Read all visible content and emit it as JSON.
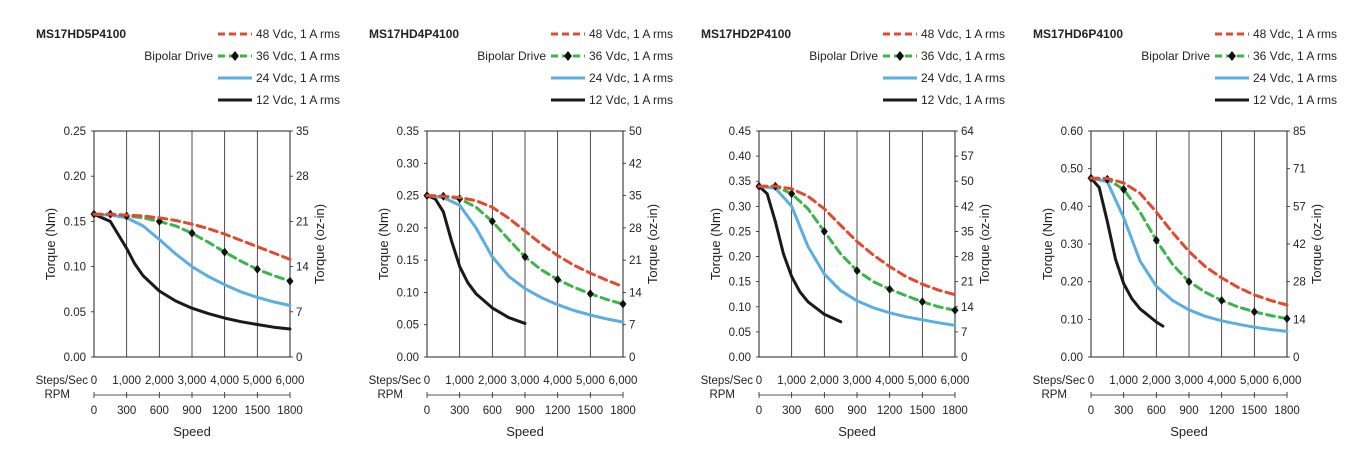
{
  "legend": {
    "drive": "Bipolar Drive",
    "entries": [
      {
        "label": "48 Vdc, 1 A rms",
        "color": "#e04a2f",
        "style": "dashed"
      },
      {
        "label": "36 Vdc, 1 A rms",
        "color": "#3ab54a",
        "style": "dashed-diamond"
      },
      {
        "label": "24 Vdc, 1 A rms",
        "color": "#5aaee0",
        "style": "solid"
      },
      {
        "label": "12 Vdc, 1 A rms",
        "color": "#1a1a1a",
        "style": "solid"
      }
    ]
  },
  "axes": {
    "y_left_label": "Torque (Nm)",
    "y_right_label": "Torque (oz-in)",
    "x_label": "Speed",
    "x_row1_label": "Steps/Sec",
    "x_row2_label": "RPM",
    "x_row1_ticks": [
      "0",
      "1,000",
      "2,000",
      "3,000",
      "4,000",
      "5,000",
      "6,000"
    ],
    "x_row2_ticks": [
      "0",
      "300",
      "600",
      "900",
      "1200",
      "1500",
      "1800"
    ]
  },
  "chart_data": [
    {
      "type": "line",
      "title": "MS17HD5P4100",
      "xlabel": "Speed",
      "ylabel": "Torque (Nm)",
      "xlim": [
        0,
        6000
      ],
      "ylim": [
        0,
        0.25
      ],
      "y_ticks": [
        "0.00",
        "0.05",
        "0.10",
        "0.15",
        "0.20",
        "0.25"
      ],
      "y2_ticks": [
        "0",
        "7",
        "14",
        "21",
        "28",
        "35"
      ],
      "grid": "vertical",
      "series": [
        {
          "name": "48 Vdc, 1 A rms",
          "x": [
            0,
            500,
            1000,
            1500,
            2000,
            2500,
            3000,
            3500,
            4000,
            4500,
            5000,
            5500,
            6000
          ],
          "y": [
            0.158,
            0.158,
            0.157,
            0.156,
            0.154,
            0.151,
            0.147,
            0.142,
            0.136,
            0.129,
            0.122,
            0.115,
            0.108
          ]
        },
        {
          "name": "36 Vdc, 1 A rms",
          "x": [
            0,
            500,
            1000,
            1500,
            2000,
            2500,
            3000,
            3500,
            4000,
            4500,
            5000,
            5500,
            6000
          ],
          "y": [
            0.158,
            0.158,
            0.156,
            0.154,
            0.15,
            0.145,
            0.137,
            0.127,
            0.116,
            0.106,
            0.097,
            0.09,
            0.084
          ]
        },
        {
          "name": "24 Vdc, 1 A rms",
          "x": [
            0,
            500,
            1000,
            1500,
            2000,
            2500,
            3000,
            3500,
            4000,
            4500,
            5000,
            5500,
            6000
          ],
          "y": [
            0.158,
            0.157,
            0.154,
            0.145,
            0.13,
            0.114,
            0.1,
            0.089,
            0.08,
            0.072,
            0.066,
            0.061,
            0.057
          ]
        },
        {
          "name": "12 Vdc, 1 A rms",
          "x": [
            0,
            500,
            1000,
            1250,
            1500,
            2000,
            2500,
            3000,
            3500,
            4000,
            4500,
            5000,
            5500,
            6000
          ],
          "y": [
            0.158,
            0.15,
            0.12,
            0.103,
            0.09,
            0.073,
            0.062,
            0.054,
            0.048,
            0.043,
            0.039,
            0.036,
            0.033,
            0.031
          ]
        }
      ]
    },
    {
      "type": "line",
      "title": "MS17HD4P4100",
      "xlabel": "Speed",
      "ylabel": "Torque (Nm)",
      "xlim": [
        0,
        6000
      ],
      "ylim": [
        0,
        0.35
      ],
      "y_ticks": [
        "0.00",
        "0.05",
        "0.10",
        "0.15",
        "0.20",
        "0.25",
        "0.30",
        "0.35"
      ],
      "y2_ticks": [
        "0",
        "7",
        "14",
        "21",
        "28",
        "35",
        "42",
        "50"
      ],
      "grid": "vertical",
      "series": [
        {
          "name": "48 Vdc, 1 A rms",
          "x": [
            0,
            500,
            1000,
            1500,
            2000,
            2500,
            3000,
            3500,
            4000,
            4500,
            5000,
            5500,
            6000
          ],
          "y": [
            0.25,
            0.249,
            0.247,
            0.242,
            0.232,
            0.215,
            0.195,
            0.175,
            0.157,
            0.142,
            0.13,
            0.119,
            0.109
          ]
        },
        {
          "name": "36 Vdc, 1 A rms",
          "x": [
            0,
            500,
            1000,
            1500,
            2000,
            2500,
            3000,
            3500,
            4000,
            4500,
            5000,
            5500,
            6000
          ],
          "y": [
            0.25,
            0.249,
            0.245,
            0.232,
            0.21,
            0.182,
            0.155,
            0.135,
            0.12,
            0.108,
            0.098,
            0.089,
            0.082
          ]
        },
        {
          "name": "24 Vdc, 1 A rms",
          "x": [
            0,
            500,
            1000,
            1500,
            2000,
            2500,
            3000,
            3500,
            4000,
            4500,
            5000,
            5500,
            6000
          ],
          "y": [
            0.25,
            0.247,
            0.235,
            0.2,
            0.155,
            0.125,
            0.106,
            0.092,
            0.081,
            0.072,
            0.065,
            0.059,
            0.054
          ]
        },
        {
          "name": "12 Vdc, 1 A rms",
          "x": [
            0,
            250,
            500,
            750,
            1000,
            1250,
            1500,
            2000,
            2500,
            3000
          ],
          "y": [
            0.25,
            0.245,
            0.225,
            0.18,
            0.14,
            0.115,
            0.098,
            0.076,
            0.061,
            0.052
          ]
        }
      ]
    },
    {
      "type": "line",
      "title": "MS17HD2P4100",
      "xlabel": "Speed",
      "ylabel": "Torque (Nm)",
      "xlim": [
        0,
        6000
      ],
      "ylim": [
        0,
        0.45
      ],
      "y_ticks": [
        "0.00",
        "0.05",
        "0.10",
        "0.15",
        "0.20",
        "0.25",
        "0.30",
        "0.35",
        "0.40",
        "0.45"
      ],
      "y2_ticks": [
        "0",
        "7",
        "14",
        "21",
        "28",
        "35",
        "42",
        "50",
        "57",
        "64"
      ],
      "grid": "vertical",
      "series": [
        {
          "name": "48 Vdc, 1 A rms",
          "x": [
            0,
            500,
            1000,
            1500,
            2000,
            2500,
            3000,
            3500,
            4000,
            4500,
            5000,
            5500,
            6000
          ],
          "y": [
            0.34,
            0.34,
            0.335,
            0.32,
            0.295,
            0.262,
            0.23,
            0.203,
            0.18,
            0.16,
            0.145,
            0.133,
            0.124
          ]
        },
        {
          "name": "36 Vdc, 1 A rms",
          "x": [
            0,
            500,
            1000,
            1500,
            2000,
            2500,
            3000,
            3500,
            4000,
            4500,
            5000,
            5500,
            6000
          ],
          "y": [
            0.34,
            0.34,
            0.325,
            0.295,
            0.25,
            0.205,
            0.172,
            0.15,
            0.135,
            0.122,
            0.11,
            0.1,
            0.093
          ]
        },
        {
          "name": "24 Vdc, 1 A rms",
          "x": [
            0,
            500,
            1000,
            1500,
            2000,
            2500,
            3000,
            3500,
            4000,
            4500,
            5000,
            5500,
            6000
          ],
          "y": [
            0.34,
            0.336,
            0.3,
            0.22,
            0.165,
            0.132,
            0.112,
            0.098,
            0.088,
            0.08,
            0.074,
            0.068,
            0.063
          ]
        },
        {
          "name": "12 Vdc, 1 A rms",
          "x": [
            0,
            250,
            500,
            750,
            1000,
            1250,
            1500,
            2000,
            2500
          ],
          "y": [
            0.34,
            0.325,
            0.27,
            0.205,
            0.16,
            0.13,
            0.11,
            0.085,
            0.07
          ]
        }
      ]
    },
    {
      "type": "line",
      "title": "MS17HD6P4100",
      "xlabel": "Speed",
      "ylabel": "Torque (Nm)",
      "xlim": [
        0,
        6000
      ],
      "ylim": [
        0,
        0.6
      ],
      "y_ticks": [
        "0.00",
        "0.10",
        "0.20",
        "0.30",
        "0.40",
        "0.50",
        "0.60"
      ],
      "y2_ticks": [
        "0",
        "14",
        "28",
        "42",
        "57",
        "71",
        "85"
      ],
      "grid": "vertical",
      "series": [
        {
          "name": "48 Vdc, 1 A rms",
          "x": [
            0,
            500,
            1000,
            1500,
            2000,
            2500,
            3000,
            3500,
            4000,
            4500,
            5000,
            5500,
            6000
          ],
          "y": [
            0.475,
            0.474,
            0.462,
            0.435,
            0.385,
            0.33,
            0.28,
            0.24,
            0.21,
            0.185,
            0.165,
            0.15,
            0.138
          ]
        },
        {
          "name": "36 Vdc, 1 A rms",
          "x": [
            0,
            500,
            1000,
            1500,
            2000,
            2500,
            3000,
            3500,
            4000,
            4500,
            5000,
            5500,
            6000
          ],
          "y": [
            0.475,
            0.472,
            0.445,
            0.385,
            0.31,
            0.245,
            0.2,
            0.172,
            0.15,
            0.133,
            0.12,
            0.11,
            0.102
          ]
        },
        {
          "name": "24 Vdc, 1 A rms",
          "x": [
            0,
            500,
            1000,
            1500,
            2000,
            2500,
            3000,
            3500,
            4000,
            4500,
            5000,
            5500,
            6000
          ],
          "y": [
            0.475,
            0.465,
            0.37,
            0.255,
            0.188,
            0.15,
            0.125,
            0.108,
            0.096,
            0.087,
            0.079,
            0.073,
            0.068
          ]
        },
        {
          "name": "12 Vdc, 1 A rms",
          "x": [
            0,
            250,
            500,
            750,
            1000,
            1250,
            1500,
            2000,
            2200
          ],
          "y": [
            0.475,
            0.45,
            0.36,
            0.26,
            0.195,
            0.155,
            0.128,
            0.093,
            0.082
          ]
        }
      ]
    }
  ]
}
